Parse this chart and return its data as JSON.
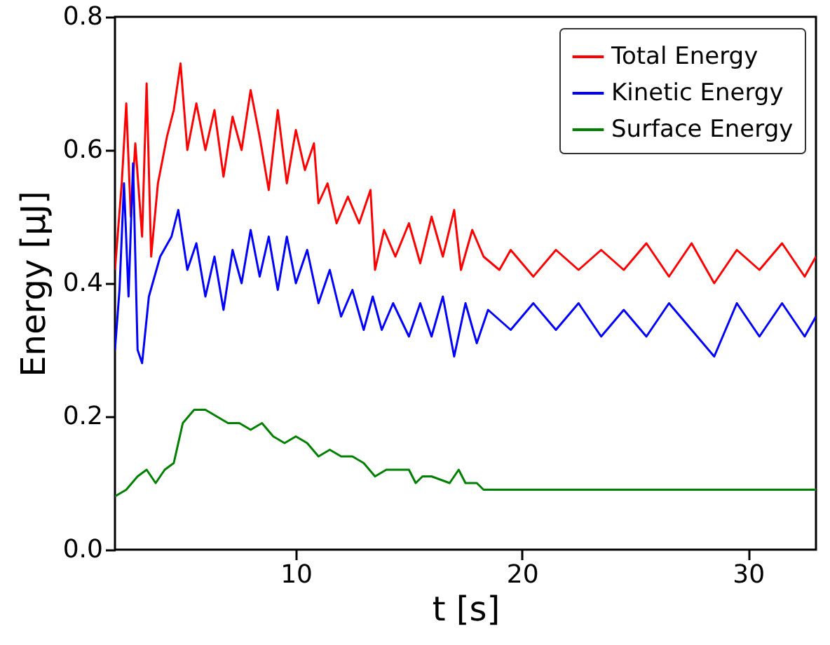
{
  "chart_data": {
    "type": "line",
    "xlabel": "t [s]",
    "ylabel": "Energy [μJ]",
    "xlim": [
      2,
      33
    ],
    "xticks": [
      10,
      20,
      30
    ],
    "ylim": [
      0,
      0.8
    ],
    "yticks": [
      {
        "value": 0,
        "label": "0.0"
      },
      0.2,
      0.4,
      0.6,
      0.8
    ],
    "grid": false,
    "legend": "top right",
    "marker": "none",
    "line_style": "solid",
    "series": [
      {
        "name": "Total Energy",
        "color": "#ff0000",
        "x": [
          2.0,
          2.3,
          2.5,
          2.7,
          2.9,
          3.2,
          3.4,
          3.6,
          3.9,
          4.3,
          4.6,
          4.9,
          5.2,
          5.6,
          6.0,
          6.4,
          6.8,
          7.2,
          7.6,
          8.0,
          8.4,
          8.8,
          9.2,
          9.6,
          10.0,
          10.4,
          10.8,
          11.0,
          11.4,
          11.8,
          12.3,
          12.8,
          13.3,
          13.5,
          13.9,
          14.4,
          15.0,
          15.5,
          16.0,
          16.5,
          17.0,
          17.3,
          17.8,
          18.3,
          19.0,
          19.5,
          20.5,
          21.5,
          22.5,
          23.5,
          24.5,
          25.5,
          26.5,
          27.5,
          28.5,
          29.5,
          30.5,
          31.5,
          32.5,
          33
        ],
        "values": [
          0.42,
          0.55,
          0.67,
          0.5,
          0.61,
          0.47,
          0.7,
          0.44,
          0.55,
          0.62,
          0.66,
          0.73,
          0.6,
          0.67,
          0.6,
          0.66,
          0.56,
          0.65,
          0.6,
          0.69,
          0.62,
          0.54,
          0.66,
          0.55,
          0.63,
          0.57,
          0.61,
          0.52,
          0.55,
          0.49,
          0.53,
          0.49,
          0.54,
          0.42,
          0.48,
          0.44,
          0.49,
          0.43,
          0.5,
          0.44,
          0.51,
          0.42,
          0.48,
          0.44,
          0.42,
          0.45,
          0.41,
          0.45,
          0.42,
          0.45,
          0.42,
          0.46,
          0.41,
          0.46,
          0.4,
          0.45,
          0.42,
          0.46,
          0.41,
          0.44
        ]
      },
      {
        "name": "Kinetic Energy",
        "color": "#0000ff",
        "x": [
          2.0,
          2.2,
          2.4,
          2.6,
          2.8,
          3.0,
          3.2,
          3.5,
          4.0,
          4.5,
          4.8,
          5.2,
          5.6,
          6.0,
          6.4,
          6.8,
          7.2,
          7.6,
          8.0,
          8.4,
          8.8,
          9.2,
          9.6,
          10.0,
          10.5,
          11.0,
          11.5,
          12.0,
          12.5,
          13.0,
          13.4,
          13.8,
          14.3,
          15.0,
          15.5,
          16.0,
          16.5,
          17.0,
          17.5,
          18.0,
          18.5,
          19.5,
          20.5,
          21.5,
          22.5,
          23.5,
          24.5,
          25.5,
          26.5,
          27.5,
          28.5,
          29.5,
          30.5,
          31.5,
          32.5,
          33
        ],
        "values": [
          0.3,
          0.39,
          0.55,
          0.38,
          0.58,
          0.3,
          0.28,
          0.38,
          0.44,
          0.47,
          0.51,
          0.42,
          0.46,
          0.38,
          0.44,
          0.36,
          0.45,
          0.4,
          0.48,
          0.41,
          0.47,
          0.39,
          0.47,
          0.4,
          0.45,
          0.37,
          0.42,
          0.35,
          0.39,
          0.33,
          0.38,
          0.33,
          0.37,
          0.32,
          0.37,
          0.32,
          0.38,
          0.29,
          0.37,
          0.31,
          0.36,
          0.33,
          0.37,
          0.33,
          0.37,
          0.32,
          0.36,
          0.32,
          0.37,
          0.33,
          0.29,
          0.37,
          0.32,
          0.37,
          0.32,
          0.35
        ]
      },
      {
        "name": "Surface Energy",
        "color": "#008000",
        "x": [
          2.0,
          2.5,
          3.0,
          3.4,
          3.8,
          4.2,
          4.6,
          5.0,
          5.5,
          6.0,
          6.5,
          7.0,
          7.5,
          8.0,
          8.5,
          9.0,
          9.5,
          10.0,
          10.5,
          11.0,
          11.5,
          12.0,
          12.5,
          13.0,
          13.5,
          14.0,
          14.5,
          15.0,
          15.3,
          15.6,
          16.0,
          16.8,
          17.2,
          17.5,
          18.0,
          18.3,
          20,
          22,
          25,
          28,
          31,
          33
        ],
        "values": [
          0.08,
          0.09,
          0.11,
          0.12,
          0.1,
          0.12,
          0.13,
          0.19,
          0.21,
          0.21,
          0.2,
          0.19,
          0.19,
          0.18,
          0.19,
          0.17,
          0.16,
          0.17,
          0.16,
          0.14,
          0.15,
          0.14,
          0.14,
          0.13,
          0.11,
          0.12,
          0.12,
          0.12,
          0.1,
          0.11,
          0.11,
          0.1,
          0.12,
          0.1,
          0.1,
          0.09,
          0.09,
          0.09,
          0.09,
          0.09,
          0.09,
          0.09
        ]
      }
    ]
  }
}
